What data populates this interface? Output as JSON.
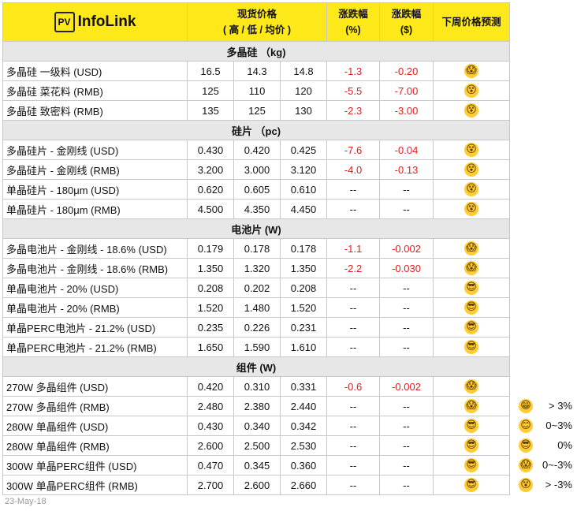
{
  "header": {
    "logo_mark": "PV",
    "logo_text": "InfoLink",
    "spot_price": [
      "现货价格",
      "( 高 / 低 / 均价 )"
    ],
    "change_pct": [
      "涨跌幅",
      "(%)"
    ],
    "change_abs": [
      "涨跌幅",
      "($)"
    ],
    "forecast": "下周价格预测"
  },
  "sections": [
    {
      "title": "多晶硅 （kg)",
      "rows": [
        [
          "多晶硅 一级料 (USD)",
          "16.5",
          "14.3",
          "14.8",
          "-1.3",
          "-0.20",
          "😱"
        ],
        [
          "多晶硅 菜花料 (RMB)",
          "125",
          "110",
          "120",
          "-5.5",
          "-7.00",
          "😵"
        ],
        [
          "多晶硅 致密料 (RMB)",
          "135",
          "125",
          "130",
          "-2.3",
          "-3.00",
          "😵"
        ]
      ]
    },
    {
      "title": "硅片 （pc)",
      "rows": [
        [
          "多晶硅片 - 金刚线 (USD)",
          "0.430",
          "0.420",
          "0.425",
          "-7.6",
          "-0.04",
          "😵"
        ],
        [
          "多晶硅片 - 金刚线 (RMB)",
          "3.200",
          "3.000",
          "3.120",
          "-4.0",
          "-0.13",
          "😵"
        ],
        [
          "单晶硅片 - 180μm (USD)",
          "0.620",
          "0.605",
          "0.610",
          "--",
          "--",
          "😵"
        ],
        [
          "单晶硅片 - 180μm (RMB)",
          "4.500",
          "4.350",
          "4.450",
          "--",
          "--",
          "😵"
        ]
      ]
    },
    {
      "title": "电池片 (W)",
      "rows": [
        [
          "多晶电池片 - 金刚线 - 18.6% (USD)",
          "0.179",
          "0.178",
          "0.178",
          "-1.1",
          "-0.002",
          "😱"
        ],
        [
          "多晶电池片 - 金刚线 - 18.6% (RMB)",
          "1.350",
          "1.320",
          "1.350",
          "-2.2",
          "-0.030",
          "😱"
        ],
        [
          "单晶电池片 - 20% (USD)",
          "0.208",
          "0.202",
          "0.208",
          "--",
          "--",
          "😎"
        ],
        [
          "单晶电池片 - 20% (RMB)",
          "1.520",
          "1.480",
          "1.520",
          "--",
          "--",
          "😎"
        ],
        [
          "单晶PERC电池片 - 21.2% (USD)",
          "0.235",
          "0.226",
          "0.231",
          "--",
          "--",
          "😎"
        ],
        [
          "单晶PERC电池片 - 21.2% (RMB)",
          "1.650",
          "1.590",
          "1.610",
          "--",
          "--",
          "😎"
        ]
      ]
    },
    {
      "title": "组件 (W)",
      "rows": [
        [
          "270W 多晶组件 (USD)",
          "0.420",
          "0.310",
          "0.331",
          "-0.6",
          "-0.002",
          "😱"
        ],
        [
          "270W 多晶组件 (RMB)",
          "2.480",
          "2.380",
          "2.440",
          "--",
          "--",
          "😱"
        ],
        [
          "280W 单晶组件 (USD)",
          "0.430",
          "0.340",
          "0.342",
          "--",
          "--",
          "😎"
        ],
        [
          "280W 单晶组件 (RMB)",
          "2.600",
          "2.500",
          "2.530",
          "--",
          "--",
          "😎"
        ],
        [
          "300W 单晶PERC组件 (USD)",
          "0.470",
          "0.345",
          "0.360",
          "--",
          "--",
          "😎"
        ],
        [
          "300W 单晶PERC组件 (RMB)",
          "2.700",
          "2.600",
          "2.660",
          "--",
          "--",
          "😎"
        ]
      ]
    }
  ],
  "legend": [
    {
      "icon": "😁",
      "label": "> 3%"
    },
    {
      "icon": "😊",
      "label": "0~3%"
    },
    {
      "icon": "😎",
      "label": "0%"
    },
    {
      "icon": "😱",
      "label": "0~-3%"
    },
    {
      "icon": "😵",
      "label": "> -3%"
    }
  ],
  "date": "23-May-18"
}
